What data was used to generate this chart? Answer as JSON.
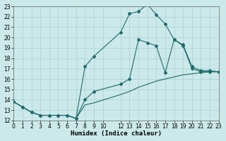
{
  "bg_color": "#cce9e9",
  "grid_color": "#aed4d4",
  "line_color": "#1e6b6b",
  "line1": {
    "x": [
      0,
      1,
      2,
      3,
      4,
      5,
      6,
      7,
      8,
      9,
      12,
      13,
      14,
      15,
      16,
      17,
      18,
      19,
      20,
      21,
      22,
      23
    ],
    "y": [
      13.8,
      13.3,
      12.8,
      12.5,
      12.5,
      12.5,
      12.5,
      12.2,
      17.2,
      18.2,
      20.5,
      22.3,
      22.5,
      23.2,
      22.2,
      21.3,
      19.8,
      19.2,
      17.0,
      16.7,
      16.7,
      16.7
    ]
  },
  "line2": {
    "x": [
      0,
      1,
      2,
      3,
      4,
      5,
      6,
      7,
      8,
      9,
      12,
      13,
      14,
      15,
      16,
      17,
      18,
      19,
      20,
      21,
      22,
      23
    ],
    "y": [
      13.8,
      13.3,
      12.8,
      12.5,
      12.5,
      12.5,
      12.5,
      12.2,
      14.0,
      14.8,
      15.5,
      16.0,
      19.8,
      19.5,
      19.2,
      16.6,
      19.8,
      19.3,
      17.2,
      16.8,
      16.8,
      16.7
    ]
  },
  "line3": {
    "x": [
      0,
      1,
      2,
      3,
      4,
      5,
      6,
      7,
      8,
      9,
      12,
      13,
      14,
      15,
      16,
      17,
      18,
      19,
      20,
      21,
      22,
      23
    ],
    "y": [
      13.8,
      13.3,
      12.8,
      12.5,
      12.5,
      12.5,
      12.5,
      12.2,
      13.5,
      13.7,
      14.5,
      14.8,
      15.2,
      15.5,
      15.8,
      16.0,
      16.2,
      16.4,
      16.5,
      16.6,
      16.7,
      16.7
    ]
  },
  "xlim": [
    0,
    23
  ],
  "ylim": [
    12,
    23
  ],
  "xticks": [
    0,
    1,
    2,
    3,
    4,
    5,
    6,
    7,
    8,
    9,
    10,
    12,
    13,
    14,
    15,
    16,
    17,
    18,
    19,
    20,
    21,
    22,
    23
  ],
  "yticks": [
    12,
    13,
    14,
    15,
    16,
    17,
    18,
    19,
    20,
    21,
    22,
    23
  ],
  "xlabel": "Humidex (Indice chaleur)",
  "tick_fontsize": 5.5,
  "xlabel_fontsize": 6.5
}
